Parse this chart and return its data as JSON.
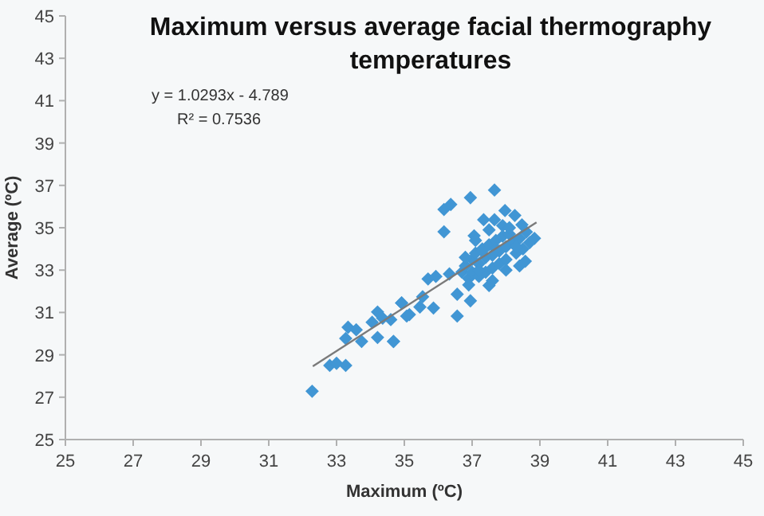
{
  "chart_data": {
    "type": "scatter",
    "title": "Maximum versus average facial thermography temperatures",
    "xlabel": "Maximum (ºC)",
    "ylabel": "Average (ºC)",
    "annotations": [
      "y = 1.0293x - 4.789",
      "R² = 0.7536"
    ],
    "xlim": [
      25,
      45
    ],
    "ylim": [
      25,
      45
    ],
    "xticks": [
      25,
      27,
      29,
      31,
      33,
      35,
      37,
      39,
      41,
      43,
      45
    ],
    "yticks": [
      25,
      27,
      29,
      31,
      33,
      35,
      37,
      39,
      41,
      43,
      45
    ],
    "grid": false,
    "marker": "diamond",
    "series": [
      {
        "color": "#4196d4",
        "x": [
          32.28,
          32.8,
          33.0,
          33.27,
          33.34,
          33.58,
          33.27,
          33.74,
          34.21,
          34.68,
          34.21,
          34.05,
          34.92,
          35.15,
          34.6,
          34.68,
          34.36,
          35.07,
          34.92,
          35.46,
          35.86,
          35.54,
          35.7,
          35.93,
          36.33,
          36.56,
          36.95,
          36.56,
          37.5,
          36.17,
          36.17,
          36.37,
          36.95,
          37.66,
          37.97,
          38.26,
          38.47,
          38.84,
          38.57,
          37.34,
          37.66,
          37.06,
          36.7,
          36.8,
          36.9,
          37.0,
          37.0,
          37.1,
          37.2,
          37.2,
          37.3,
          37.4,
          37.4,
          37.5,
          37.6,
          37.6,
          37.7,
          37.8,
          37.8,
          37.9,
          38.0,
          38.0,
          38.1,
          38.2,
          38.3,
          38.4,
          38.5,
          38.6,
          36.8,
          37.1,
          37.3,
          37.5,
          37.7,
          37.9,
          38.1,
          38.3,
          36.9,
          37.2,
          37.6,
          38.0,
          38.4,
          38.7
        ],
        "values": [
          27.28,
          28.5,
          28.6,
          28.5,
          30.3,
          30.18,
          29.77,
          29.63,
          29.82,
          29.63,
          31.02,
          30.54,
          31.45,
          30.9,
          30.66,
          29.63,
          30.73,
          30.83,
          31.45,
          31.26,
          31.21,
          31.74,
          32.58,
          32.7,
          32.82,
          30.83,
          31.55,
          31.86,
          32.27,
          34.81,
          35.86,
          36.1,
          36.42,
          36.78,
          35.81,
          35.58,
          35.14,
          34.5,
          33.42,
          35.38,
          35.38,
          34.62,
          32.9,
          33.2,
          32.6,
          33.5,
          32.9,
          33.8,
          33.3,
          32.7,
          34.0,
          33.6,
          32.9,
          34.2,
          33.7,
          33.1,
          34.4,
          33.9,
          33.3,
          34.6,
          34.1,
          33.5,
          34.7,
          34.3,
          33.8,
          34.5,
          34.0,
          34.8,
          33.6,
          34.4,
          33.9,
          34.9,
          34.0,
          35.1,
          35.0,
          34.1,
          32.3,
          33.0,
          32.5,
          33.0,
          33.2,
          34.3
        ]
      },
      {
        "type": "line",
        "color": "#7a7a7a",
        "marker": "none",
        "x": [
          32.3,
          38.9
        ],
        "values": [
          28.46,
          35.25
        ]
      }
    ]
  }
}
